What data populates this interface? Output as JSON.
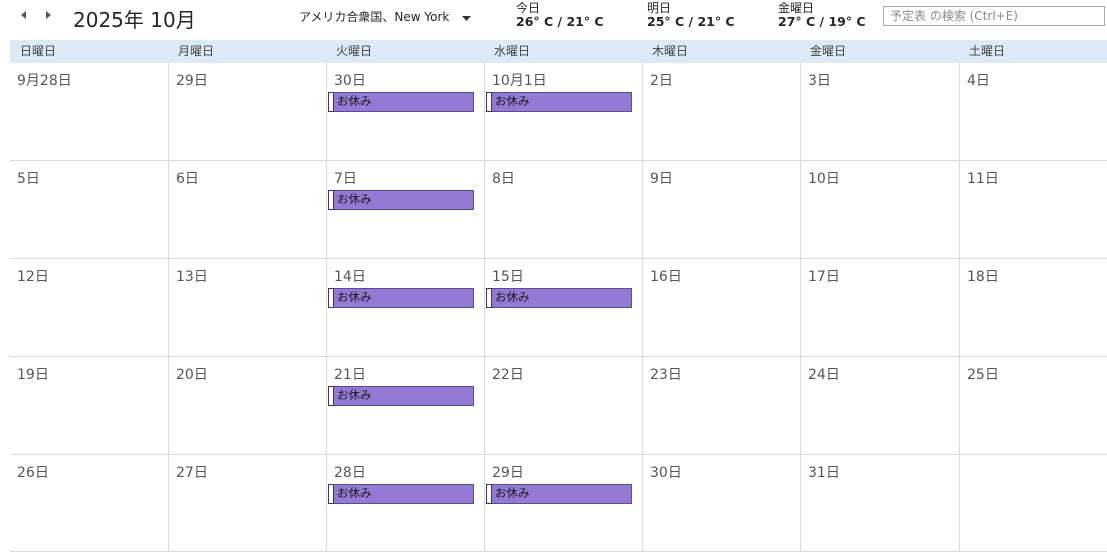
{
  "nav": {
    "prev_icon": "chevron-left-icon",
    "next_icon": "chevron-right-icon",
    "month_title": "2025年 10月"
  },
  "location": {
    "label": "アメリカ合衆国、New York",
    "caret_icon": "caret-down-icon"
  },
  "weather": [
    {
      "day": "今日",
      "temp": "26° C / 21° C"
    },
    {
      "day": "明日",
      "temp": "25° C / 21° C"
    },
    {
      "day": "金曜日",
      "temp": "27° C / 19° C"
    }
  ],
  "search": {
    "placeholder": "予定表 の検索 (Ctrl+E)"
  },
  "weekdays": [
    "日曜日",
    "月曜日",
    "火曜日",
    "水曜日",
    "木曜日",
    "金曜日",
    "土曜日"
  ],
  "weeks": [
    [
      {
        "date": "9月28日"
      },
      {
        "date": "29日"
      },
      {
        "date": "30日",
        "event": "お休み"
      },
      {
        "date": "10月1日",
        "event": "お休み"
      },
      {
        "date": "2日"
      },
      {
        "date": "3日"
      },
      {
        "date": "4日"
      }
    ],
    [
      {
        "date": "5日"
      },
      {
        "date": "6日"
      },
      {
        "date": "7日",
        "event": "お休み"
      },
      {
        "date": "8日"
      },
      {
        "date": "9日"
      },
      {
        "date": "10日"
      },
      {
        "date": "11日"
      }
    ],
    [
      {
        "date": "12日"
      },
      {
        "date": "13日"
      },
      {
        "date": "14日",
        "event": "お休み"
      },
      {
        "date": "15日",
        "event": "お休み"
      },
      {
        "date": "16日"
      },
      {
        "date": "17日"
      },
      {
        "date": "18日"
      }
    ],
    [
      {
        "date": "19日"
      },
      {
        "date": "20日"
      },
      {
        "date": "21日",
        "event": "お休み"
      },
      {
        "date": "22日"
      },
      {
        "date": "23日"
      },
      {
        "date": "24日"
      },
      {
        "date": "25日"
      }
    ],
    [
      {
        "date": "26日"
      },
      {
        "date": "27日"
      },
      {
        "date": "28日",
        "event": "お休み"
      },
      {
        "date": "29日",
        "event": "お休み"
      },
      {
        "date": "30日"
      },
      {
        "date": "31日"
      },
      {
        "date": ""
      }
    ]
  ],
  "colors": {
    "event_fill": "#9479d4",
    "header_bg": "#dbeaf6",
    "grid_line": "#dadada"
  }
}
